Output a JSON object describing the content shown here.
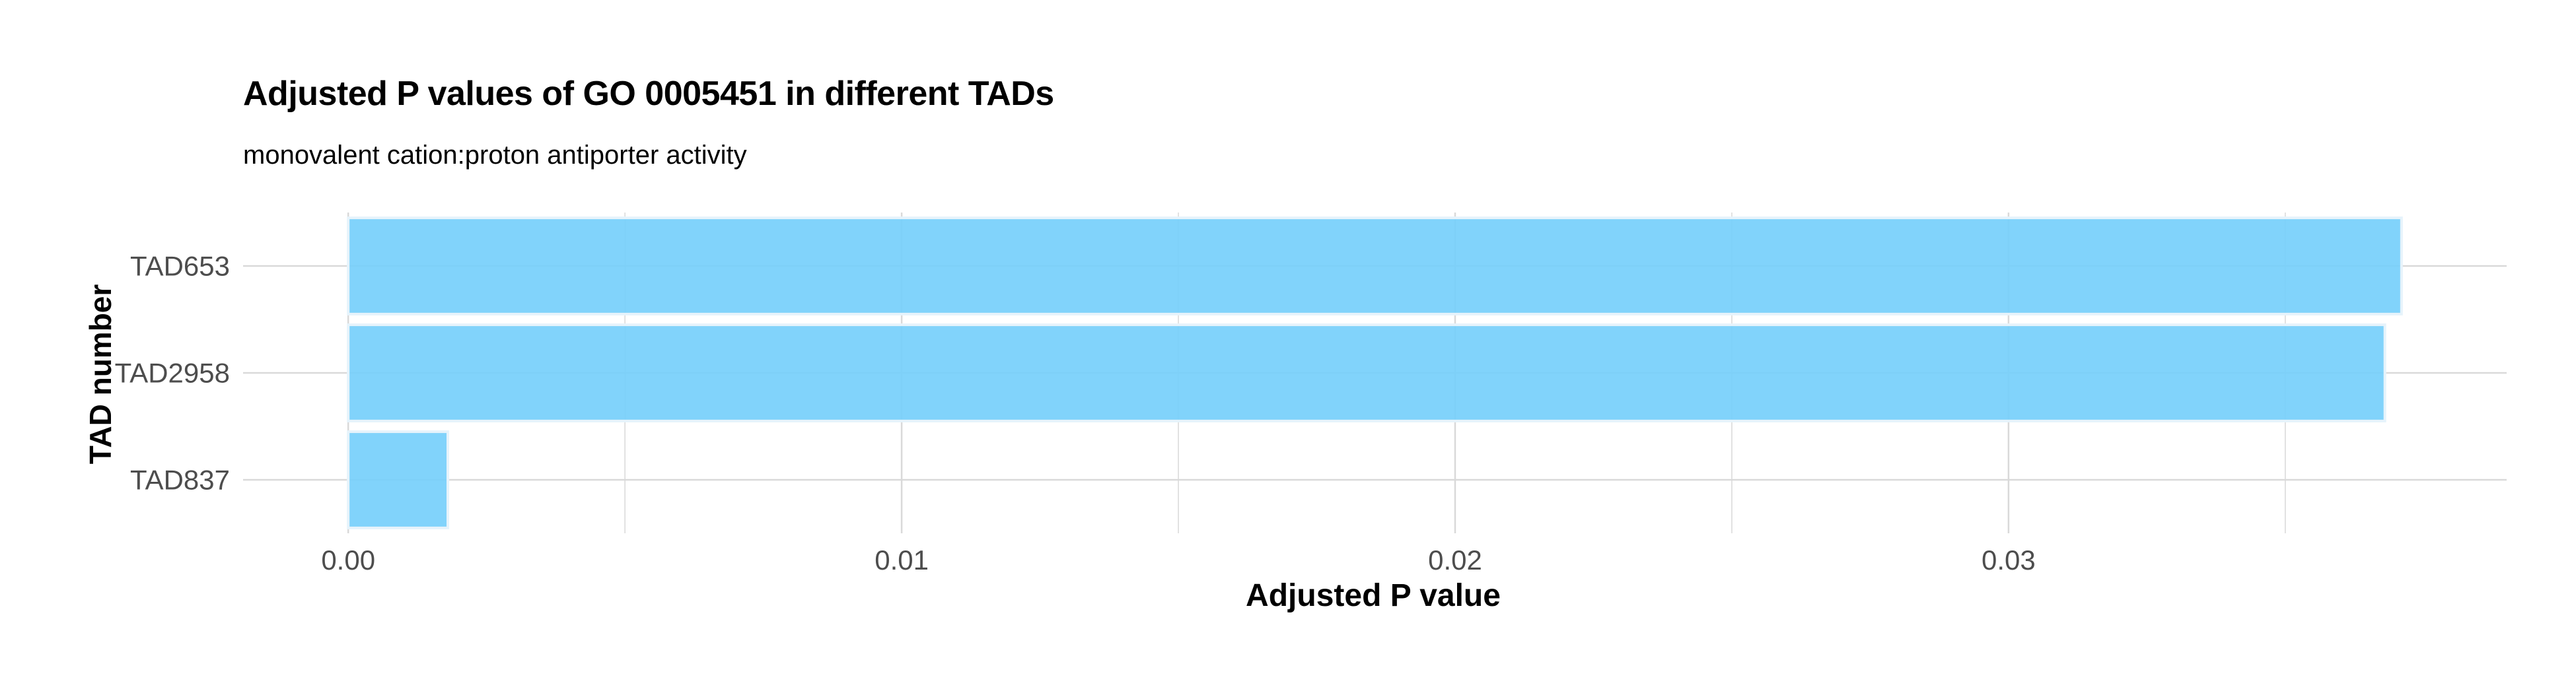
{
  "chart_data": {
    "type": "bar",
    "orientation": "horizontal",
    "title": "Adjusted P values of GO 0005451 in different TADs",
    "subtitle": "monovalent cation:proton antiporter activity",
    "xlabel": "Adjusted P value",
    "ylabel": "TAD number",
    "categories": [
      "TAD653",
      "TAD2958",
      "TAD837"
    ],
    "values": [
      0.0371,
      0.0368,
      0.0018
    ],
    "xlim": [
      -0.0019,
      0.039
    ],
    "x_ticks": [
      0.0,
      0.01,
      0.02,
      0.03
    ],
    "x_tick_labels": [
      "0.00",
      "0.01",
      "0.02",
      "0.03"
    ],
    "grid": true,
    "legend": "none",
    "colors": {
      "bar_fill": "#76cffb",
      "bar_stroke": "#e6f3fb",
      "grid": "#d9d9d9",
      "tick_label": "#4d4d4d"
    }
  }
}
